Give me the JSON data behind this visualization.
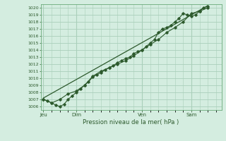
{
  "title": "Pression niveau de la mer( hPa )",
  "bg_color": "#d4ede0",
  "grid_color": "#aacfba",
  "line_color": "#2d5a2d",
  "ylim": [
    1005.5,
    1020.5
  ],
  "yticks": [
    1006,
    1007,
    1008,
    1009,
    1010,
    1011,
    1012,
    1013,
    1014,
    1015,
    1016,
    1017,
    1018,
    1019,
    1020
  ],
  "day_labels": [
    "Jeu",
    "Dim",
    "Ven",
    "Sam"
  ],
  "day_positions": [
    0,
    24,
    72,
    108
  ],
  "xlim": [
    -2,
    130
  ],
  "line1_x": [
    0,
    3,
    6,
    9,
    12,
    15,
    18,
    21,
    24,
    27,
    30,
    33,
    36,
    39,
    42,
    45,
    48,
    51,
    54,
    57,
    60,
    63,
    66,
    69,
    72,
    75,
    78,
    81,
    84,
    87,
    90,
    93,
    96,
    99,
    102,
    105,
    108,
    111,
    114,
    117,
    120
  ],
  "line1_y": [
    1007.0,
    1006.8,
    1006.5,
    1006.2,
    1006.0,
    1006.3,
    1007.0,
    1007.5,
    1008.0,
    1008.5,
    1009.0,
    1009.5,
    1010.2,
    1010.5,
    1010.8,
    1011.2,
    1011.5,
    1011.8,
    1012.2,
    1012.5,
    1012.8,
    1013.0,
    1013.5,
    1013.8,
    1014.0,
    1014.5,
    1015.0,
    1015.5,
    1016.5,
    1017.0,
    1017.2,
    1017.5,
    1018.0,
    1018.5,
    1019.2,
    1019.0,
    1018.8,
    1019.0,
    1019.5,
    1020.0,
    1020.2
  ],
  "line2_x": [
    0,
    6,
    12,
    18,
    24,
    30,
    36,
    42,
    48,
    54,
    60,
    66,
    72,
    78,
    84,
    90,
    96,
    102,
    108,
    114,
    120
  ],
  "line2_y": [
    1007.0,
    1006.5,
    1007.0,
    1007.8,
    1008.2,
    1009.0,
    1010.3,
    1011.0,
    1011.5,
    1012.0,
    1012.5,
    1013.2,
    1014.0,
    1014.8,
    1015.5,
    1016.5,
    1017.2,
    1018.0,
    1019.2,
    1019.5,
    1020.0
  ],
  "line3_x": [
    0,
    120
  ],
  "line3_y": [
    1007.2,
    1020.3
  ]
}
